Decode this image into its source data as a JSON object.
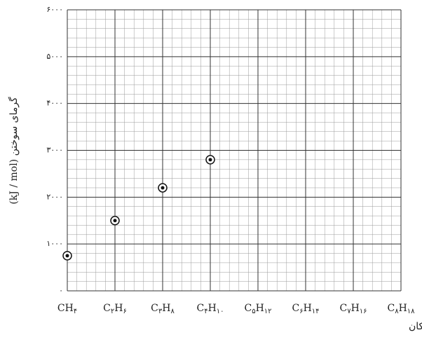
{
  "chart_data": {
    "type": "scatter",
    "ylabel": "گرمای سوختن (kJ / mol)",
    "xlabel": "آلکان",
    "categories": [
      "CH۴",
      "C۲H۶",
      "C۳H۸",
      "C۴H۱۰",
      "C۵H۱۲",
      "C۶H۱۴",
      "C۷H۱۶",
      "C۸H۱۸"
    ],
    "values": [
      750,
      1500,
      2200,
      2800,
      null,
      null,
      null,
      null
    ],
    "color": "#111111",
    "ylim": [
      0,
      6000
    ],
    "yticks": [
      {
        "value": 0,
        "label": "۰"
      },
      {
        "value": 1000,
        "label": "۱۰۰۰"
      },
      {
        "value": 2000,
        "label": "۲۰۰۰"
      },
      {
        "value": 3000,
        "label": "۳۰۰۰"
      },
      {
        "value": 4000,
        "label": "۴۰۰۰"
      },
      {
        "value": 5000,
        "label": "۵۰۰۰"
      },
      {
        "value": 6000,
        "label": "۶۰۰۰"
      }
    ],
    "grid": true
  }
}
